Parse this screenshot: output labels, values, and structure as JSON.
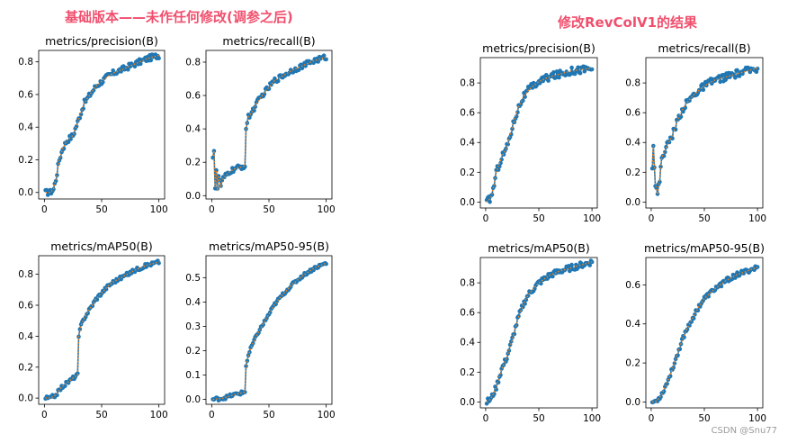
{
  "headings": {
    "left": "基础版本——未作任何修改(调参之后)",
    "right": "修改RevColV1的结果"
  },
  "watermark": "CSDN @Snu77",
  "colors": {
    "heading": "#f0506e",
    "results_line": "#1f77b4",
    "smooth_line": "#ff7f0e"
  },
  "chart_data": [
    {
      "type": "line",
      "group": "基础版本——未作任何修改(调参之后)",
      "title": "metrics/precision(B)",
      "xlim": [
        -5,
        105
      ],
      "ylim": [
        -0.04,
        0.87
      ],
      "xticks": [
        0,
        50,
        100
      ],
      "yticks": [
        0.0,
        0.2,
        0.4,
        0.6,
        0.8
      ],
      "ytick_labels": [
        "0.0",
        "0.2",
        "0.4",
        "0.6",
        "0.8"
      ],
      "knots": [
        [
          1,
          0.0
        ],
        [
          5,
          0.0
        ],
        [
          8,
          0.02
        ],
        [
          10,
          0.08
        ],
        [
          13,
          0.2
        ],
        [
          16,
          0.27
        ],
        [
          20,
          0.32
        ],
        [
          25,
          0.35
        ],
        [
          30,
          0.45
        ],
        [
          35,
          0.55
        ],
        [
          40,
          0.6
        ],
        [
          45,
          0.65
        ],
        [
          50,
          0.68
        ],
        [
          55,
          0.71
        ],
        [
          60,
          0.73
        ],
        [
          70,
          0.76
        ],
        [
          80,
          0.79
        ],
        [
          90,
          0.82
        ],
        [
          100,
          0.84
        ]
      ],
      "noise": 0.018
    },
    {
      "type": "line",
      "group": "基础版本——未作任何修改(调参之后)",
      "title": "metrics/recall(B)",
      "xlim": [
        -5,
        105
      ],
      "ylim": [
        -0.02,
        0.87
      ],
      "xticks": [
        0,
        50,
        100
      ],
      "yticks": [
        0.0,
        0.2,
        0.4,
        0.6,
        0.8
      ],
      "ytick_labels": [
        "0.0",
        "0.2",
        "0.4",
        "0.6",
        "0.8"
      ],
      "knots": [
        [
          1,
          0.24
        ],
        [
          2,
          0.27
        ],
        [
          3,
          0.05
        ],
        [
          4,
          0.15
        ],
        [
          5,
          0.03
        ],
        [
          6,
          0.12
        ],
        [
          8,
          0.06
        ],
        [
          10,
          0.1
        ],
        [
          15,
          0.14
        ],
        [
          20,
          0.16
        ],
        [
          25,
          0.17
        ],
        [
          29,
          0.18
        ],
        [
          30,
          0.4
        ],
        [
          32,
          0.47
        ],
        [
          35,
          0.5
        ],
        [
          40,
          0.56
        ],
        [
          45,
          0.61
        ],
        [
          50,
          0.65
        ],
        [
          55,
          0.69
        ],
        [
          60,
          0.71
        ],
        [
          70,
          0.75
        ],
        [
          80,
          0.78
        ],
        [
          90,
          0.81
        ],
        [
          100,
          0.83
        ]
      ],
      "noise": 0.016
    },
    {
      "type": "line",
      "group": "基础版本——未作任何修改(调参之后)",
      "title": "metrics/mAP50(B)",
      "xlim": [
        -5,
        105
      ],
      "ylim": [
        -0.04,
        0.92
      ],
      "xticks": [
        0,
        50,
        100
      ],
      "yticks": [
        0.0,
        0.2,
        0.4,
        0.6,
        0.8
      ],
      "ytick_labels": [
        "0.0",
        "0.2",
        "0.4",
        "0.6",
        "0.8"
      ],
      "knots": [
        [
          1,
          0.0
        ],
        [
          5,
          0.0
        ],
        [
          10,
          0.02
        ],
        [
          15,
          0.07
        ],
        [
          20,
          0.1
        ],
        [
          25,
          0.13
        ],
        [
          29,
          0.15
        ],
        [
          30,
          0.4
        ],
        [
          32,
          0.47
        ],
        [
          35,
          0.52
        ],
        [
          40,
          0.58
        ],
        [
          45,
          0.64
        ],
        [
          50,
          0.68
        ],
        [
          55,
          0.72
        ],
        [
          60,
          0.75
        ],
        [
          70,
          0.79
        ],
        [
          80,
          0.83
        ],
        [
          90,
          0.86
        ],
        [
          100,
          0.88
        ]
      ],
      "noise": 0.012
    },
    {
      "type": "line",
      "group": "基础版本——未作任何修改(调参之后)",
      "title": "metrics/mAP50-95(B)",
      "xlim": [
        -5,
        105
      ],
      "ylim": [
        -0.02,
        0.59
      ],
      "xticks": [
        0,
        50,
        100
      ],
      "yticks": [
        0.0,
        0.1,
        0.2,
        0.3,
        0.4,
        0.5
      ],
      "ytick_labels": [
        "0.0",
        "0.1",
        "0.2",
        "0.3",
        "0.4",
        "0.5"
      ],
      "knots": [
        [
          1,
          0.0
        ],
        [
          10,
          0.005
        ],
        [
          20,
          0.02
        ],
        [
          29,
          0.03
        ],
        [
          30,
          0.14
        ],
        [
          32,
          0.18
        ],
        [
          35,
          0.22
        ],
        [
          40,
          0.27
        ],
        [
          45,
          0.31
        ],
        [
          50,
          0.35
        ],
        [
          55,
          0.39
        ],
        [
          60,
          0.42
        ],
        [
          70,
          0.47
        ],
        [
          80,
          0.51
        ],
        [
          90,
          0.54
        ],
        [
          100,
          0.56
        ]
      ],
      "noise": 0.007
    },
    {
      "type": "line",
      "group": "修改RevColV1的结果",
      "title": "metrics/precision(B)",
      "xlim": [
        -5,
        105
      ],
      "ylim": [
        -0.04,
        0.97
      ],
      "xticks": [
        0,
        50,
        100
      ],
      "yticks": [
        0.0,
        0.2,
        0.4,
        0.6,
        0.8
      ],
      "ytick_labels": [
        "0.0",
        "0.2",
        "0.4",
        "0.6",
        "0.8"
      ],
      "knots": [
        [
          1,
          0.0
        ],
        [
          5,
          0.03
        ],
        [
          8,
          0.12
        ],
        [
          10,
          0.2
        ],
        [
          15,
          0.3
        ],
        [
          20,
          0.37
        ],
        [
          25,
          0.5
        ],
        [
          30,
          0.62
        ],
        [
          35,
          0.7
        ],
        [
          40,
          0.75
        ],
        [
          45,
          0.78
        ],
        [
          50,
          0.81
        ],
        [
          60,
          0.84
        ],
        [
          70,
          0.86
        ],
        [
          80,
          0.88
        ],
        [
          90,
          0.89
        ],
        [
          100,
          0.9
        ]
      ],
      "noise": 0.025
    },
    {
      "type": "line",
      "group": "修改RevColV1的结果",
      "title": "metrics/recall(B)",
      "xlim": [
        -5,
        105
      ],
      "ylim": [
        -0.04,
        0.97
      ],
      "xticks": [
        0,
        50,
        100
      ],
      "yticks": [
        0.0,
        0.2,
        0.4,
        0.6,
        0.8
      ],
      "ytick_labels": [
        "0.0",
        "0.2",
        "0.4",
        "0.6",
        "0.8"
      ],
      "knots": [
        [
          1,
          0.25
        ],
        [
          2,
          0.38
        ],
        [
          4,
          0.12
        ],
        [
          6,
          0.05
        ],
        [
          8,
          0.15
        ],
        [
          10,
          0.3
        ],
        [
          15,
          0.38
        ],
        [
          20,
          0.45
        ],
        [
          25,
          0.55
        ],
        [
          30,
          0.63
        ],
        [
          35,
          0.68
        ],
        [
          40,
          0.72
        ],
        [
          50,
          0.78
        ],
        [
          60,
          0.82
        ],
        [
          70,
          0.84
        ],
        [
          80,
          0.86
        ],
        [
          90,
          0.88
        ],
        [
          100,
          0.9
        ]
      ],
      "noise": 0.025
    },
    {
      "type": "line",
      "group": "修改RevColV1的结果",
      "title": "metrics/mAP50(B)",
      "xlim": [
        -5,
        105
      ],
      "ylim": [
        -0.04,
        0.97
      ],
      "xticks": [
        0,
        50,
        100
      ],
      "yticks": [
        0.0,
        0.2,
        0.4,
        0.6,
        0.8
      ],
      "ytick_labels": [
        "0.0",
        "0.2",
        "0.4",
        "0.6",
        "0.8"
      ],
      "knots": [
        [
          1,
          0.0
        ],
        [
          5,
          0.02
        ],
        [
          10,
          0.1
        ],
        [
          15,
          0.22
        ],
        [
          20,
          0.3
        ],
        [
          25,
          0.42
        ],
        [
          30,
          0.55
        ],
        [
          35,
          0.65
        ],
        [
          40,
          0.72
        ],
        [
          45,
          0.76
        ],
        [
          50,
          0.8
        ],
        [
          60,
          0.85
        ],
        [
          70,
          0.88
        ],
        [
          80,
          0.9
        ],
        [
          90,
          0.92
        ],
        [
          100,
          0.94
        ]
      ],
      "noise": 0.02
    },
    {
      "type": "line",
      "group": "修改RevColV1的结果",
      "title": "metrics/mAP50-95(B)",
      "xlim": [
        -5,
        105
      ],
      "ylim": [
        -0.03,
        0.74
      ],
      "xticks": [
        0,
        50,
        100
      ],
      "yticks": [
        0.0,
        0.2,
        0.4,
        0.6
      ],
      "ytick_labels": [
        "0.0",
        "0.2",
        "0.4",
        "0.6"
      ],
      "knots": [
        [
          1,
          0.0
        ],
        [
          5,
          0.005
        ],
        [
          10,
          0.04
        ],
        [
          15,
          0.1
        ],
        [
          20,
          0.17
        ],
        [
          25,
          0.25
        ],
        [
          30,
          0.33
        ],
        [
          35,
          0.39
        ],
        [
          40,
          0.44
        ],
        [
          45,
          0.49
        ],
        [
          50,
          0.53
        ],
        [
          60,
          0.58
        ],
        [
          70,
          0.62
        ],
        [
          80,
          0.65
        ],
        [
          90,
          0.67
        ],
        [
          100,
          0.69
        ]
      ],
      "noise": 0.012
    }
  ]
}
